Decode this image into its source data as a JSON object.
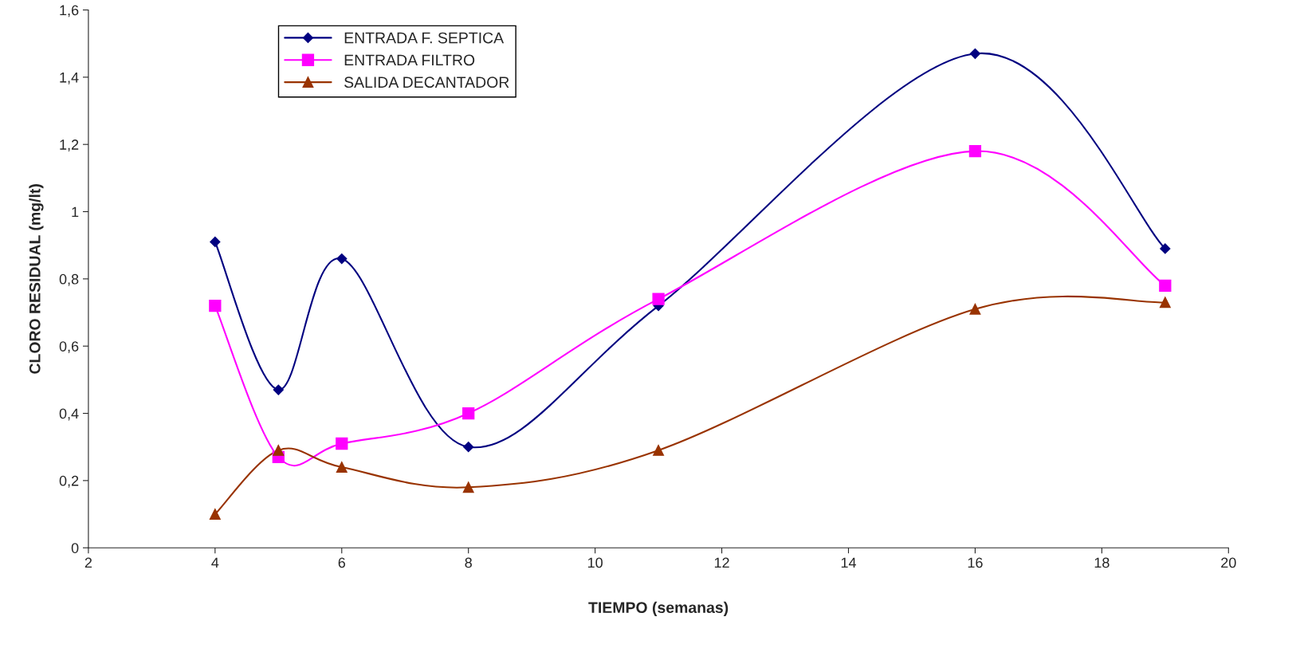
{
  "chart_data": {
    "type": "line",
    "xlabel": "TIEMPO (semanas)",
    "ylabel": "CLORO RESIDUAL (mg/lt)",
    "x": [
      4,
      5,
      6,
      8,
      11,
      16,
      19
    ],
    "series": [
      {
        "name": "ENTRADA F. SEPTICA",
        "color": "#000080",
        "marker": "diamond",
        "values": [
          0.91,
          0.47,
          0.86,
          0.3,
          0.72,
          1.47,
          0.89
        ]
      },
      {
        "name": "ENTRADA FILTRO",
        "color": "#ff00ff",
        "marker": "square",
        "values": [
          0.72,
          0.27,
          0.31,
          0.4,
          0.74,
          1.18,
          0.78
        ]
      },
      {
        "name": "SALIDA DECANTADOR",
        "color": "#993300",
        "marker": "triangle",
        "values": [
          0.1,
          0.29,
          0.24,
          0.18,
          0.29,
          0.71,
          0.73
        ]
      }
    ],
    "xlim": [
      2,
      20
    ],
    "xticks": [
      2,
      4,
      6,
      8,
      10,
      12,
      14,
      16,
      18,
      20
    ],
    "ylim": [
      0,
      1.6
    ],
    "yticks": [
      0,
      {
        "value": 0.2,
        "label": "0,2"
      },
      {
        "value": 0.4,
        "label": "0,4"
      },
      {
        "value": 0.6,
        "label": "0,6"
      },
      {
        "value": 0.8,
        "label": "0,8"
      },
      1,
      {
        "value": 1.2,
        "label": "1,2"
      },
      {
        "value": 1.4,
        "label": "1,4"
      },
      {
        "value": 1.6,
        "label": "1,6"
      }
    ],
    "grid": false,
    "legend": "top left",
    "line_style": "solid"
  }
}
